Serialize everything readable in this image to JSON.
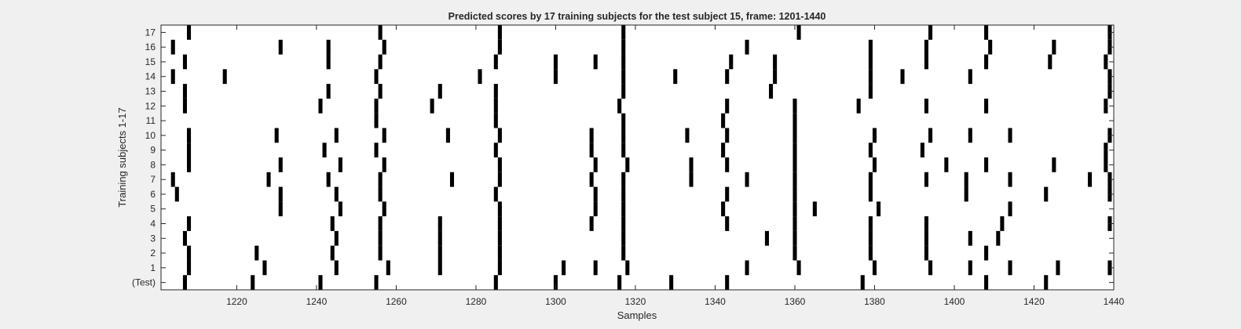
{
  "chart_data": {
    "type": "heatmap",
    "title": "Predicted scores by 17 training subjects for the test subject 15, frame: 1201-1440",
    "xlabel": "Samples",
    "ylabel": "Training subjects 1-17",
    "xlim": [
      1201,
      1440
    ],
    "xticks": [
      1220,
      1240,
      1260,
      1280,
      1300,
      1320,
      1340,
      1360,
      1380,
      1400,
      1420,
      1440
    ],
    "rows": [
      "(Test)",
      "1",
      "2",
      "3",
      "4",
      "5",
      "6",
      "7",
      "8",
      "9",
      "10",
      "11",
      "12",
      "13",
      "14",
      "15",
      "16",
      "17"
    ],
    "mark_color": "#000000",
    "background_color": "#ffffff",
    "events": {
      "(Test)": [
        1207,
        1224,
        1241,
        1255,
        1285,
        1300,
        1316,
        1329,
        1343,
        1377,
        1408,
        1423
      ],
      "1": [
        1208,
        1227,
        1245,
        1258,
        1271,
        1286,
        1302,
        1310,
        1318,
        1348,
        1361,
        1380,
        1394,
        1404,
        1414,
        1426,
        1439
      ],
      "2": [
        1208,
        1225,
        1244,
        1256,
        1271,
        1286,
        1317,
        1360,
        1379,
        1393,
        1408
      ],
      "3": [
        1207,
        1245,
        1256,
        1271,
        1286,
        1317,
        1353,
        1360,
        1379,
        1393,
        1404,
        1411
      ],
      "4": [
        1208,
        1244,
        1256,
        1271,
        1286,
        1309,
        1317,
        1343,
        1360,
        1379,
        1393,
        1412,
        1439
      ],
      "5": [
        1231,
        1246,
        1257,
        1286,
        1310,
        1317,
        1342,
        1360,
        1365,
        1381,
        1414
      ],
      "6": [
        1205,
        1231,
        1245,
        1256,
        1285,
        1310,
        1317,
        1343,
        1360,
        1379,
        1403,
        1423,
        1439
      ],
      "7": [
        1204,
        1228,
        1243,
        1256,
        1274,
        1286,
        1309,
        1317,
        1334,
        1348,
        1360,
        1379,
        1393,
        1403,
        1414,
        1434,
        1439
      ],
      "8": [
        1208,
        1231,
        1246,
        1257,
        1286,
        1310,
        1318,
        1334,
        1343,
        1360,
        1380,
        1398,
        1408,
        1425,
        1438
      ],
      "9": [
        1208,
        1242,
        1255,
        1285,
        1309,
        1317,
        1342,
        1360,
        1379,
        1392,
        1438
      ],
      "10": [
        1208,
        1230,
        1245,
        1257,
        1273,
        1286,
        1309,
        1317,
        1333,
        1343,
        1360,
        1380,
        1394,
        1404,
        1414,
        1439
      ],
      "11": [
        1255,
        1285,
        1317,
        1342,
        1360
      ],
      "12": [
        1207,
        1241,
        1255,
        1269,
        1285,
        1316,
        1343,
        1360,
        1376,
        1393,
        1408,
        1438
      ],
      "13": [
        1207,
        1243,
        1256,
        1271,
        1285,
        1317,
        1354,
        1379,
        1439
      ],
      "14": [
        1204,
        1217,
        1255,
        1281,
        1300,
        1317,
        1330,
        1343,
        1355,
        1379,
        1387,
        1404,
        1439
      ],
      "15": [
        1207,
        1243,
        1256,
        1285,
        1300,
        1310,
        1317,
        1344,
        1355,
        1379,
        1393,
        1408,
        1424,
        1438
      ],
      "16": [
        1204,
        1231,
        1243,
        1257,
        1286,
        1317,
        1348,
        1379,
        1393,
        1409,
        1425,
        1439
      ],
      "17": [
        1208,
        1256,
        1286,
        1317,
        1361,
        1394,
        1408,
        1439
      ]
    }
  }
}
